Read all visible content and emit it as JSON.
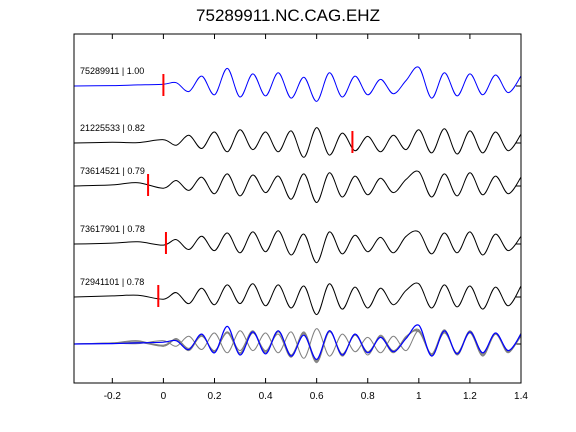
{
  "chart_data": {
    "type": "line",
    "title": "75289911.NC.CAG.EHZ",
    "xlabel": "",
    "ylabel": "",
    "xlim": [
      -0.35,
      1.4
    ],
    "xticks": [
      -0.2,
      0,
      0.2,
      0.4,
      0.6,
      0.8,
      1,
      1.2,
      1.4
    ],
    "xtick_labels": [
      "-0.2",
      "0",
      "0.2",
      "0.4",
      "0.6",
      "0.8",
      "1",
      "1.2",
      "1.4"
    ],
    "grid": false,
    "colors": {
      "master": "#0000ff",
      "trace": "#000000",
      "pick": "#ff0000",
      "overlay": "#808080"
    },
    "traces": [
      {
        "label": "75289911 | 1.00",
        "pick": 0.0,
        "master": true,
        "x": [
          -0.35,
          -0.2,
          -0.1,
          0.0,
          0.05,
          0.1,
          0.15,
          0.2,
          0.25,
          0.3,
          0.35,
          0.4,
          0.45,
          0.5,
          0.55,
          0.6,
          0.65,
          0.7,
          0.75,
          0.8,
          0.85,
          0.9,
          0.95,
          1.0,
          1.05,
          1.1,
          1.15,
          1.2,
          1.25,
          1.3,
          1.35,
          1.4
        ],
        "y": [
          0,
          0.02,
          0.05,
          0.08,
          0.15,
          -0.25,
          0.45,
          -0.4,
          0.8,
          -0.5,
          0.55,
          -0.45,
          0.6,
          -0.55,
          0.4,
          -0.7,
          0.6,
          -0.5,
          0.45,
          -0.4,
          0.3,
          -0.35,
          0.25,
          0.85,
          -0.55,
          0.6,
          -0.45,
          0.55,
          -0.4,
          0.5,
          -0.3,
          0.45
        ]
      },
      {
        "label": "21225533 | 0.82",
        "pick": 0.74,
        "master": false,
        "x": [
          -0.35,
          -0.2,
          -0.1,
          0.0,
          0.05,
          0.1,
          0.15,
          0.2,
          0.25,
          0.3,
          0.35,
          0.4,
          0.45,
          0.5,
          0.55,
          0.6,
          0.65,
          0.7,
          0.75,
          0.8,
          0.85,
          0.9,
          0.95,
          1.0,
          1.05,
          1.1,
          1.15,
          1.2,
          1.25,
          1.3,
          1.35,
          1.4
        ],
        "y": [
          0,
          0.03,
          0.02,
          0.15,
          -0.1,
          0.35,
          -0.25,
          0.5,
          -0.4,
          0.6,
          -0.3,
          0.5,
          -0.4,
          0.55,
          -0.65,
          0.7,
          -0.55,
          0.45,
          -0.35,
          0.3,
          -0.4,
          0.35,
          -0.3,
          0.6,
          -0.45,
          0.65,
          -0.5,
          0.55,
          -0.45,
          0.5,
          -0.35,
          0.4
        ]
      },
      {
        "label": "73614521 | 0.79",
        "pick": -0.06,
        "master": false,
        "x": [
          -0.35,
          -0.2,
          -0.1,
          0.0,
          0.05,
          0.1,
          0.15,
          0.2,
          0.25,
          0.3,
          0.35,
          0.4,
          0.45,
          0.5,
          0.55,
          0.6,
          0.65,
          0.7,
          0.75,
          0.8,
          0.85,
          0.9,
          0.95,
          1.0,
          1.05,
          1.1,
          1.15,
          1.2,
          1.25,
          1.3,
          1.35,
          1.4
        ],
        "y": [
          0,
          0.05,
          0.15,
          -0.1,
          0.25,
          -0.2,
          0.4,
          -0.35,
          0.55,
          -0.45,
          0.5,
          -0.3,
          0.45,
          -0.6,
          0.55,
          -0.75,
          0.6,
          -0.5,
          0.45,
          -0.4,
          0.35,
          -0.3,
          0.3,
          0.65,
          -0.5,
          0.55,
          -0.45,
          0.6,
          -0.4,
          0.45,
          -0.35,
          0.4
        ]
      },
      {
        "label": "73617901 | 0.78",
        "pick": 0.01,
        "master": false,
        "x": [
          -0.35,
          -0.2,
          -0.1,
          0.0,
          0.05,
          0.1,
          0.15,
          0.2,
          0.25,
          0.3,
          0.35,
          0.4,
          0.45,
          0.5,
          0.55,
          0.6,
          0.65,
          0.7,
          0.75,
          0.8,
          0.85,
          0.9,
          0.95,
          1.0,
          1.05,
          1.1,
          1.15,
          1.2,
          1.25,
          1.3,
          1.35,
          1.4
        ],
        "y": [
          0,
          0.04,
          0.1,
          -0.05,
          0.2,
          -0.25,
          0.35,
          -0.3,
          0.5,
          -0.4,
          0.55,
          -0.35,
          0.6,
          -0.5,
          0.45,
          -0.85,
          0.55,
          -0.45,
          0.4,
          -0.35,
          0.3,
          -0.4,
          0.35,
          0.55,
          -0.45,
          0.5,
          -0.4,
          0.55,
          -0.5,
          0.45,
          -0.3,
          0.35
        ]
      },
      {
        "label": "72941101 | 0.78",
        "pick": -0.02,
        "master": false,
        "x": [
          -0.35,
          -0.2,
          -0.1,
          0.0,
          0.05,
          0.1,
          0.15,
          0.2,
          0.25,
          0.3,
          0.35,
          0.4,
          0.45,
          0.5,
          0.55,
          0.6,
          0.65,
          0.7,
          0.75,
          0.8,
          0.85,
          0.9,
          0.95,
          1.0,
          1.05,
          1.1,
          1.15,
          1.2,
          1.25,
          1.3,
          1.35,
          1.4
        ],
        "y": [
          0,
          0.05,
          0.08,
          -0.1,
          0.2,
          -0.3,
          0.4,
          -0.35,
          0.55,
          -0.3,
          0.6,
          -0.4,
          0.55,
          -0.5,
          0.5,
          -0.8,
          0.6,
          -0.55,
          0.45,
          -0.5,
          0.4,
          -0.35,
          0.3,
          0.6,
          -0.5,
          0.55,
          -0.45,
          0.5,
          -0.55,
          0.45,
          -0.4,
          0.5
        ]
      }
    ]
  }
}
